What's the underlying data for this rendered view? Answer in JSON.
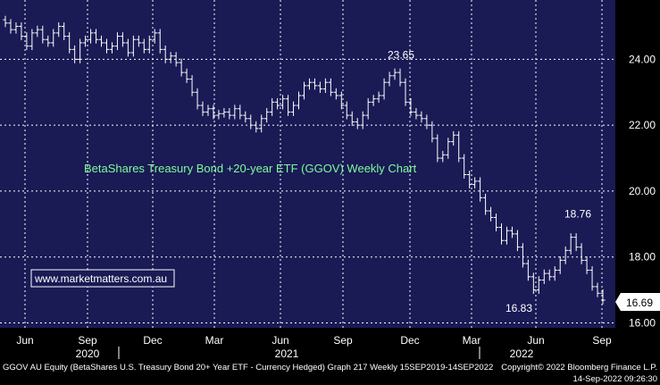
{
  "chart_data": {
    "type": "ohlc",
    "title": "BetaShares Treasury Bond +20-year ETF (GGOV) Weekly Chart",
    "ylim": [
      15.85,
      25.8
    ],
    "yticks": [
      "16.00",
      "18.00",
      "20.00",
      "22.00",
      "24.00"
    ],
    "ytick_values": [
      16,
      18,
      20,
      22,
      24
    ],
    "grid": true,
    "x_month_labels": [
      "Jun",
      "Sep",
      "Dec",
      "Mar",
      "Jun",
      "Sep",
      "Dec",
      "Mar",
      "Jun",
      "Sep"
    ],
    "x_year_labels": [
      "2020",
      "2021",
      "2022"
    ],
    "annotations": [
      {
        "text": "23.65",
        "value": 23.65
      },
      {
        "text": "18.76",
        "value": 18.76
      },
      {
        "text": "16.83",
        "value": 16.83
      }
    ],
    "last_price": "16.69",
    "watermark": "www.marketmatters.com.au",
    "footer_left": "GGOV AU Equity (BetaShares U.S. Treasury Bond 20+ Year ETF - Currency Hedged) Graph 217  Weekly 15SEP2019-14SEP2022",
    "footer_right_1": "Copyright© 2022 Bloomberg Finance L.P.",
    "footer_right_2": "14-Sep-2022 09:26:30",
    "colors": {
      "background": "#1a1a55",
      "grid": "#ffffff",
      "bars": "#ffffff",
      "title": "#7CFC9A",
      "outer": "#000000"
    },
    "closes": [
      25.1,
      24.9,
      25.0,
      24.7,
      24.4,
      24.8,
      24.9,
      24.6,
      24.5,
      24.8,
      25.0,
      24.7,
      24.3,
      24.0,
      24.5,
      24.6,
      24.8,
      24.6,
      24.5,
      24.3,
      24.4,
      24.7,
      24.5,
      24.2,
      24.6,
      24.5,
      24.3,
      24.6,
      24.8,
      24.3,
      24.0,
      24.1,
      23.9,
      23.6,
      23.4,
      23.0,
      22.6,
      22.4,
      22.5,
      22.3,
      22.35,
      22.4,
      22.3,
      22.5,
      22.3,
      22.2,
      22.0,
      21.9,
      22.2,
      22.4,
      22.7,
      22.6,
      22.8,
      22.4,
      22.6,
      22.9,
      23.2,
      23.3,
      23.2,
      23.1,
      23.3,
      23.0,
      22.9,
      22.6,
      22.3,
      22.1,
      22.0,
      22.3,
      22.7,
      22.8,
      22.9,
      23.3,
      23.5,
      23.6,
      23.3,
      22.7,
      22.4,
      22.3,
      22.2,
      22.0,
      21.6,
      21.0,
      21.1,
      21.5,
      21.7,
      21.0,
      20.5,
      20.2,
      20.3,
      19.8,
      19.4,
      19.2,
      18.9,
      18.5,
      18.8,
      18.7,
      18.3,
      17.8,
      17.4,
      17.0,
      17.3,
      17.5,
      17.4,
      17.6,
      17.9,
      18.2,
      18.6,
      18.3,
      17.9,
      17.6,
      17.1,
      16.9,
      16.69
    ]
  }
}
